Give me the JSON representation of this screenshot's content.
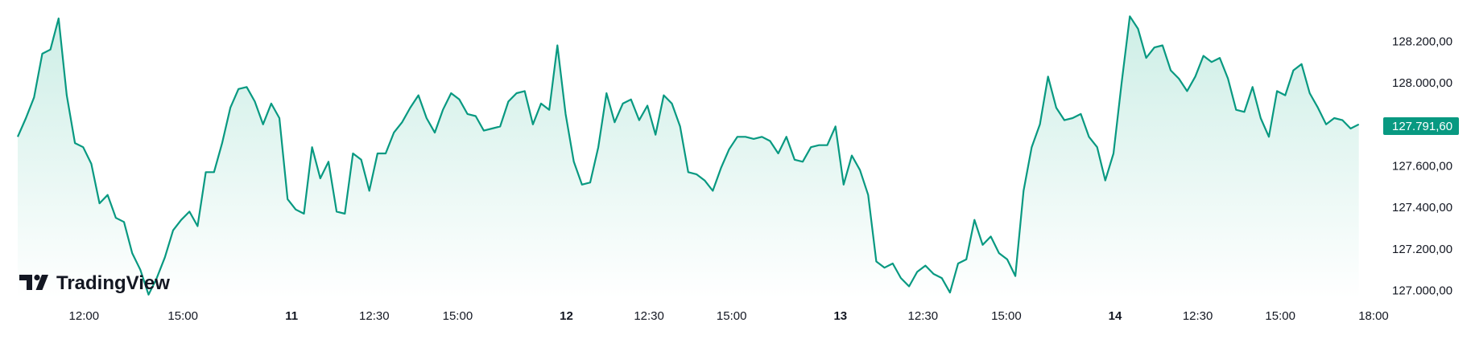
{
  "logo": {
    "text": "TradingView",
    "icon": "tradingview-logo-icon"
  },
  "colors": {
    "line": "#089981",
    "fill_top": "#cdeee6",
    "fill_bottom": "#ffffff",
    "badge": "#089981",
    "text": "#131722"
  },
  "chart_data": {
    "type": "area",
    "xlabel": "",
    "ylabel": "",
    "ylim": [
      126960,
      128360
    ],
    "xlim": [
      0,
      166
    ],
    "y_ticks": [
      "128.200,00",
      "128.000,00",
      "127.800,00",
      "127.600,00",
      "127.400,00",
      "127.200,00",
      "127.000,00"
    ],
    "y_tick_values": [
      128200,
      128000,
      127800,
      127600,
      127400,
      127200,
      127000
    ],
    "x_ticks": [
      {
        "label": "12:00",
        "x": 8.1,
        "bold": false
      },
      {
        "label": "15:00",
        "x": 20.2,
        "bold": false
      },
      {
        "label": "11",
        "x": 33.5,
        "bold": true
      },
      {
        "label": "12:30",
        "x": 43.6,
        "bold": false
      },
      {
        "label": "15:00",
        "x": 53.8,
        "bold": false
      },
      {
        "label": "12",
        "x": 67.1,
        "bold": true
      },
      {
        "label": "12:30",
        "x": 77.2,
        "bold": false
      },
      {
        "label": "15:00",
        "x": 87.3,
        "bold": false
      },
      {
        "label": "13",
        "x": 100.6,
        "bold": true
      },
      {
        "label": "12:30",
        "x": 110.7,
        "bold": false
      },
      {
        "label": "15:00",
        "x": 120.9,
        "bold": false
      },
      {
        "label": "14",
        "x": 134.2,
        "bold": true
      },
      {
        "label": "12:30",
        "x": 144.3,
        "bold": false
      },
      {
        "label": "15:00",
        "x": 154.4,
        "bold": false
      },
      {
        "label": "18:00",
        "x": 165.8,
        "bold": false
      }
    ],
    "last_price_label": "127.791,60",
    "last_price_value": 127791.6,
    "series": [
      {
        "values": [
          127740,
          127830,
          127930,
          128140,
          128160,
          128310,
          127940,
          127710,
          127690,
          127610,
          127420,
          127460,
          127350,
          127330,
          127180,
          127100,
          126980,
          127060,
          127160,
          127290,
          127340,
          127380,
          127310,
          127570,
          127570,
          127710,
          127880,
          127970,
          127980,
          127910,
          127800,
          127900,
          127830,
          127440,
          127390,
          127370,
          127690,
          127540,
          127620,
          127380,
          127370,
          127660,
          127630,
          127480,
          127660,
          127660,
          127760,
          127810,
          127880,
          127940,
          127830,
          127760,
          127870,
          127950,
          127920,
          127850,
          127840,
          127770,
          127780,
          127790,
          127910,
          127950,
          127960,
          127800,
          127900,
          127870,
          128180,
          127850,
          127620,
          127510,
          127520,
          127690,
          127950,
          127810,
          127900,
          127920,
          127820,
          127890,
          127750,
          127940,
          127900,
          127790,
          127570,
          127560,
          127530,
          127480,
          127590,
          127680,
          127740,
          127740,
          127730,
          127740,
          127720,
          127660,
          127740,
          127630,
          127620,
          127690,
          127700,
          127700,
          127790,
          127510,
          127650,
          127580,
          127460,
          127140,
          127110,
          127130,
          127060,
          127020,
          127090,
          127120,
          127080,
          127060,
          126990,
          127130,
          127150,
          127340,
          127220,
          127260,
          127180,
          127150,
          127070,
          127480,
          127690,
          127800,
          128030,
          127880,
          127820,
          127830,
          127850,
          127740,
          127690,
          127530,
          127660,
          128000,
          128320,
          128260,
          128120,
          128170,
          128180,
          128060,
          128020,
          127960,
          128030,
          128130,
          128100,
          128120,
          128020,
          127870,
          127860,
          127980,
          127830,
          127740,
          127960,
          127940,
          128060,
          128090,
          127950,
          127880,
          127800,
          127830,
          127820,
          127780,
          127800
        ]
      }
    ]
  }
}
